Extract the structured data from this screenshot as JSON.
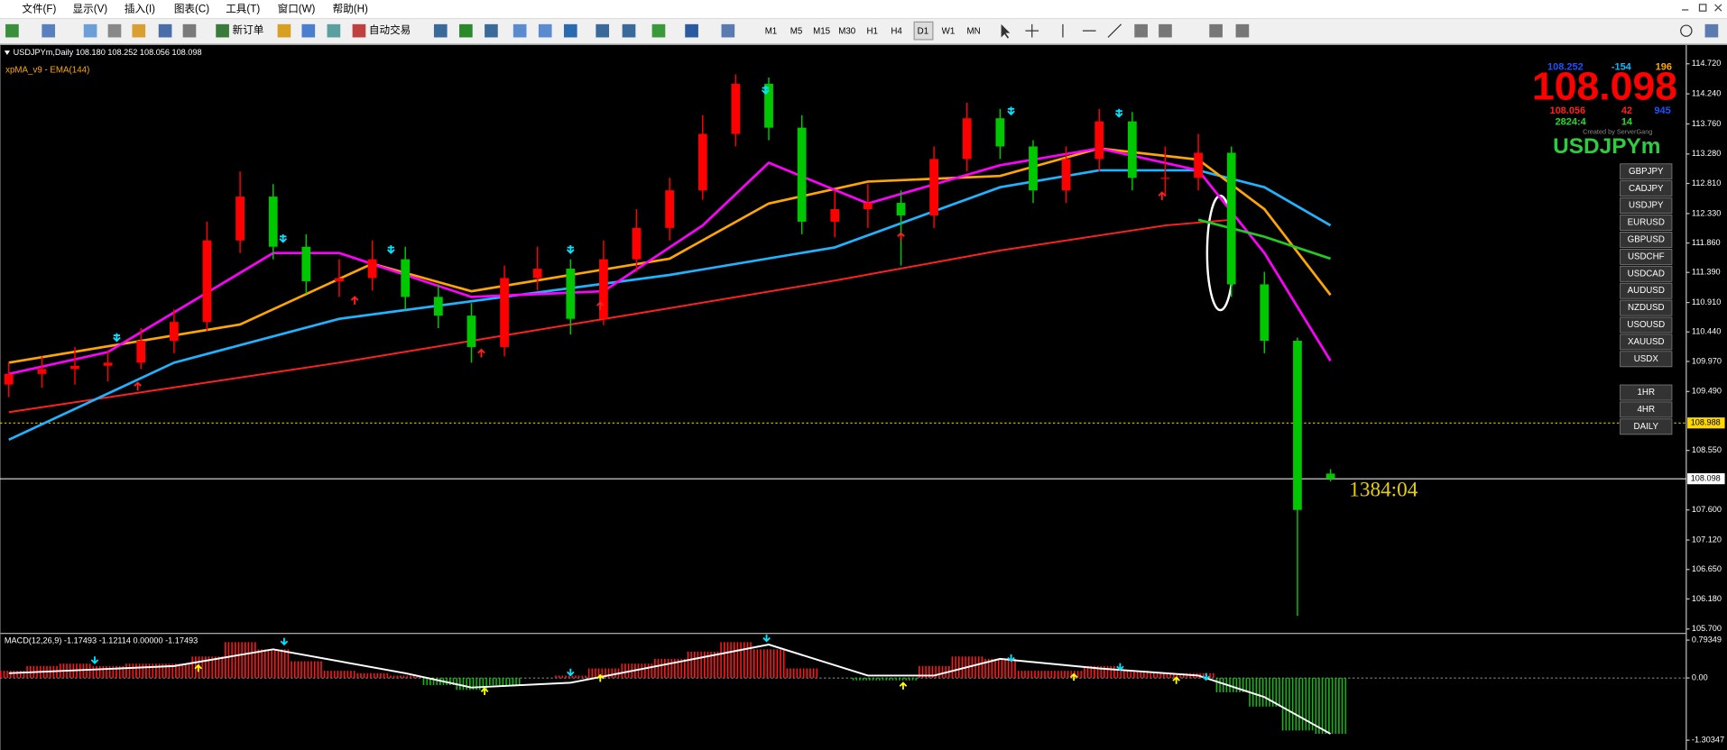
{
  "menu": [
    "文件(F)",
    "显示(V)",
    "插入(I)",
    "图表(C)",
    "工具(T)",
    "窗口(W)",
    "帮助(H)"
  ],
  "toolbar": {
    "new_order": "新订单",
    "auto_trade": "自动交易",
    "timeframes": [
      "M1",
      "M5",
      "M15",
      "M30",
      "H1",
      "H4",
      "D1",
      "W1",
      "MN"
    ]
  },
  "chart_data": [
    {
      "type": "candlestick",
      "header": "USDJPYm,Daily  108.180 108.252 108.056 108.098",
      "indicator": "xpMA_v9 - EMA(144)",
      "up_color": "#ff0000",
      "down_color": "#00c800",
      "candles": [
        [
          109.6,
          109.95,
          109.4,
          109.77
        ],
        [
          109.77,
          110.05,
          109.55,
          109.85
        ],
        [
          109.85,
          110.2,
          109.6,
          109.9
        ],
        [
          109.9,
          110.15,
          109.65,
          109.95
        ],
        [
          109.95,
          110.5,
          109.85,
          110.3
        ],
        [
          110.3,
          110.8,
          110.1,
          110.6
        ],
        [
          110.6,
          112.2,
          110.45,
          111.9
        ],
        [
          111.9,
          113.0,
          111.7,
          112.6
        ],
        [
          112.6,
          112.8,
          111.6,
          111.8
        ],
        [
          111.8,
          112.0,
          111.05,
          111.25
        ],
        [
          111.25,
          111.6,
          111.0,
          111.3
        ],
        [
          111.3,
          111.9,
          111.1,
          111.6
        ],
        [
          111.6,
          111.8,
          110.8,
          111.0
        ],
        [
          111.0,
          111.2,
          110.5,
          110.7
        ],
        [
          110.7,
          110.9,
          109.95,
          110.2
        ],
        [
          110.2,
          111.5,
          110.05,
          111.3
        ],
        [
          111.3,
          111.8,
          111.1,
          111.45
        ],
        [
          111.45,
          111.6,
          110.4,
          110.65
        ],
        [
          110.65,
          111.9,
          110.55,
          111.6
        ],
        [
          111.6,
          112.4,
          111.4,
          112.1
        ],
        [
          112.1,
          112.9,
          111.9,
          112.7
        ],
        [
          112.7,
          113.9,
          112.55,
          113.6
        ],
        [
          113.6,
          114.55,
          113.4,
          114.4
        ],
        [
          114.4,
          114.5,
          113.5,
          113.7
        ],
        [
          113.7,
          113.9,
          112.0,
          112.2
        ],
        [
          112.2,
          112.7,
          111.95,
          112.4
        ],
        [
          112.4,
          112.8,
          112.1,
          112.5
        ],
        [
          112.5,
          112.7,
          111.5,
          112.3
        ],
        [
          112.3,
          113.4,
          112.1,
          113.2
        ],
        [
          113.2,
          114.1,
          113.0,
          113.85
        ],
        [
          113.85,
          114.0,
          113.2,
          113.4
        ],
        [
          113.4,
          113.5,
          112.5,
          112.7
        ],
        [
          112.7,
          113.4,
          112.5,
          113.2
        ],
        [
          113.2,
          114.0,
          113.0,
          113.8
        ],
        [
          113.8,
          113.95,
          112.7,
          112.9
        ],
        [
          112.9,
          113.4,
          112.6,
          112.9
        ],
        [
          112.9,
          113.6,
          112.7,
          113.3
        ],
        [
          113.3,
          113.4,
          111.0,
          111.2
        ],
        [
          111.2,
          111.4,
          110.1,
          110.3
        ],
        [
          110.3,
          110.35,
          105.91,
          107.6
        ],
        [
          108.18,
          108.252,
          108.056,
          108.098
        ]
      ],
      "lines": [
        {
          "color": "#ff2020",
          "x": [
            0,
            10,
            20,
            25,
            30,
            35,
            37
          ],
          "values": [
            109.16,
            109.95,
            110.82,
            111.26,
            111.74,
            112.14,
            112.23
          ]
        },
        {
          "color": "#1eb4ff",
          "x": [
            0,
            5,
            10,
            15,
            20,
            25,
            30,
            33,
            36,
            38,
            40
          ],
          "values": [
            108.72,
            109.95,
            110.65,
            111.0,
            111.35,
            111.79,
            112.75,
            113.02,
            113.02,
            112.75,
            112.14
          ]
        },
        {
          "color": "#ffa500",
          "x": [
            0,
            7,
            11,
            14,
            20,
            23,
            26,
            30,
            33,
            36,
            38,
            40
          ],
          "values": [
            109.95,
            110.56,
            111.53,
            111.09,
            111.61,
            112.49,
            112.84,
            112.93,
            113.37,
            113.19,
            112.4,
            111.03
          ]
        },
        {
          "color": "#ff00ff",
          "x": [
            0,
            3,
            8,
            10,
            14,
            18,
            21,
            23,
            26,
            30,
            33,
            36,
            38,
            40
          ],
          "values": [
            109.77,
            110.12,
            111.7,
            111.7,
            111.0,
            111.09,
            112.14,
            113.14,
            112.49,
            113.1,
            113.37,
            113.02,
            111.7,
            109.98
          ]
        },
        {
          "color": "#22cc22",
          "x": [
            36,
            38,
            40
          ],
          "values": [
            112.23,
            111.96,
            111.61
          ]
        }
      ],
      "ylim": [
        105.647,
        115.018
      ],
      "yticks": [
        {
          "value": 114.72,
          "label": "114.720"
        },
        {
          "value": 114.24,
          "label": "114.240"
        },
        {
          "value": 113.76,
          "label": "113.760"
        },
        {
          "value": 113.28,
          "label": "113.280"
        },
        {
          "value": 112.81,
          "label": "112.810"
        },
        {
          "value": 112.33,
          "label": "112.330"
        },
        {
          "value": 111.86,
          "label": "111.860"
        },
        {
          "value": 111.39,
          "label": "111.390"
        },
        {
          "value": 110.91,
          "label": "110.910"
        },
        {
          "value": 110.44,
          "label": "110.440"
        },
        {
          "value": 109.97,
          "label": "109.970"
        },
        {
          "value": 109.49,
          "label": "109.490"
        },
        {
          "value": 108.55,
          "label": "108.550"
        },
        {
          "value": 107.6,
          "label": "107.600"
        },
        {
          "value": 107.12,
          "label": "107.120"
        },
        {
          "value": 106.65,
          "label": "106.650"
        },
        {
          "value": 106.18,
          "label": "106.180"
        },
        {
          "value": 105.7,
          "label": "105.700"
        }
      ],
      "price_lines": [
        {
          "value": 108.988,
          "label": "108.988",
          "color": "#ffd700",
          "dashed": true
        },
        {
          "value": 108.098,
          "label": "108.098",
          "color": "#ffffff",
          "dashed": false
        }
      ],
      "countdown": "1384:04"
    },
    {
      "type": "macd",
      "header": "MACD(12,26,9) -1.17493 -1.12114 0.00000 -1.17493",
      "ylim": [
        -1.44,
        0.91
      ],
      "yticks": [
        {
          "value": 0.79349,
          "label": "0.79349"
        },
        {
          "value": 0,
          "label": "0.00"
        },
        {
          "value": -1.30347,
          "label": "-1.30347"
        }
      ],
      "histogram": [
        0.15,
        0.25,
        0.3,
        0.25,
        0.3,
        0.3,
        0.45,
        0.75,
        0.6,
        0.35,
        0.15,
        0.1,
        0.05,
        -0.15,
        -0.25,
        -0.15,
        0.0,
        0.05,
        0.2,
        0.3,
        0.4,
        0.55,
        0.75,
        0.6,
        0.2,
        0.0,
        -0.05,
        -0.05,
        0.25,
        0.45,
        0.4,
        0.15,
        0.15,
        0.25,
        0.15,
        0.1,
        0.1,
        -0.3,
        -0.6,
        -1.1,
        -1.17
      ],
      "signal": {
        "color": "#ffffff",
        "x": [
          0,
          5,
          8,
          12,
          14,
          17,
          20,
          23,
          26,
          28,
          30,
          33,
          36,
          38,
          40
        ],
        "values": [
          0.1,
          0.25,
          0.6,
          0.1,
          -0.2,
          -0.1,
          0.3,
          0.7,
          0.05,
          0.05,
          0.4,
          0.2,
          0.05,
          -0.4,
          -1.17
        ]
      }
    }
  ],
  "info_panel": {
    "row1": [
      "108.252",
      "-154",
      "196"
    ],
    "price": "108.098",
    "row3": [
      "108.056",
      "42",
      "945"
    ],
    "row4": [
      "2824:4",
      "14"
    ],
    "credit": "Created by ServerGang",
    "symbol": "USDJPYm"
  },
  "symbols": [
    "GBPJPY",
    "CADJPY",
    "USDJPY",
    "EURUSD",
    "GBPUSD",
    "USDCHF",
    "USDCAD",
    "AUDUSD",
    "NZDUSD",
    "USOUSD",
    "XAUUSD",
    "USDX"
  ],
  "timeframe_buttons": [
    "1HR",
    "4HR",
    "DAILY"
  ]
}
